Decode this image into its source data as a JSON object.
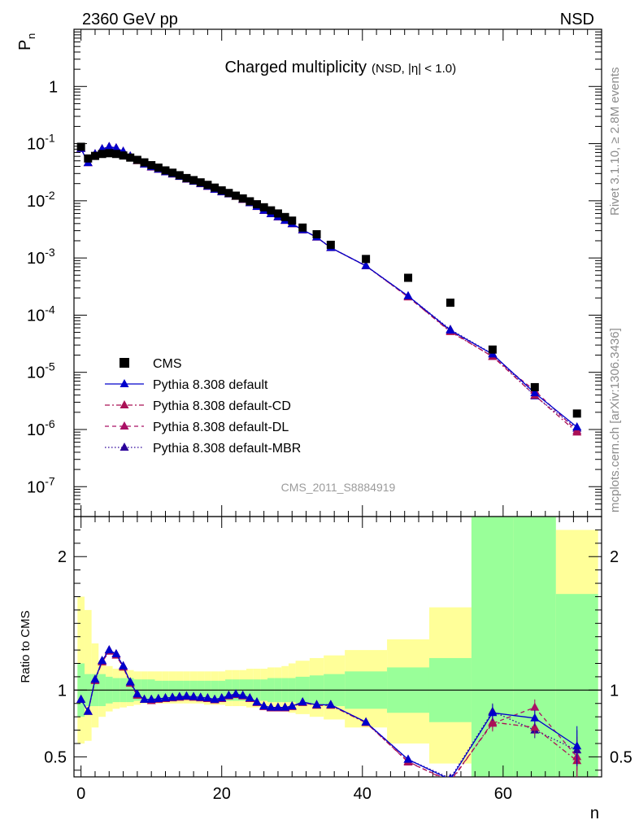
{
  "header": {
    "left": "2360 GeV pp",
    "right": "NSD"
  },
  "chart_data": {
    "type": "scatter",
    "title": "Charged multiplicity",
    "title_sub": "(NSD, |η| < 1.0)",
    "analysis_id": "CMS_2011_S8884919",
    "side_top": "Rivet 3.1.10, ≥ 2.8M events",
    "side_bottom": "mcplots.cern.ch [arXiv:1306.3436]",
    "xlabel": "n",
    "ylabel": "P",
    "ylabel_sub": "n",
    "ratio_ylabel": "Ratio to CMS",
    "xlim": [
      -1,
      74
    ],
    "ylim_log": [
      3e-08,
      10
    ],
    "ratio_ylim": [
      0.35,
      2.3
    ],
    "x_ticks": [
      0,
      20,
      40,
      60
    ],
    "y_ticks_main": [
      "10^{-7}",
      "10^{-6}",
      "10^{-5}",
      "10^{-4}",
      "10^{-3}",
      "10^{-2}",
      "10^{-1}",
      "1"
    ],
    "ratio_ticks": [
      0.5,
      1,
      2
    ],
    "legend_position": "lower-left",
    "colors": {
      "cms": "#000000",
      "default": "#0000cc",
      "cd": "#aa1155",
      "dl": "#aa1166",
      "mbr": "#2a0099",
      "band_inner": "#99ff99",
      "band_outer": "#ffff99"
    },
    "legend": [
      "CMS",
      "Pythia 8.308 default",
      "Pythia 8.308 default-CD",
      "Pythia 8.308 default-DL",
      "Pythia 8.308 default-MBR"
    ],
    "cms": {
      "n": [
        0,
        1,
        2,
        3,
        4,
        5,
        6,
        7,
        8,
        9,
        10,
        11,
        12,
        13,
        14,
        15,
        16,
        17,
        18,
        19,
        20,
        21,
        22,
        23,
        24,
        25,
        26,
        27,
        28,
        29,
        30,
        31.5,
        33.5,
        35.5,
        40.5,
        46.5,
        52.5,
        58.5,
        64.5,
        70.5
      ],
      "p": [
        0.088,
        0.055,
        0.061,
        0.066,
        0.068,
        0.066,
        0.062,
        0.057,
        0.052,
        0.047,
        0.042,
        0.038,
        0.034,
        0.031,
        0.028,
        0.025,
        0.023,
        0.021,
        0.019,
        0.017,
        0.0152,
        0.0137,
        0.0123,
        0.011,
        0.0098,
        0.0087,
        0.0077,
        0.0068,
        0.006,
        0.0052,
        0.0045,
        0.0034,
        0.0026,
        0.0017,
        0.00096,
        0.00045,
        0.000165,
        2.5e-05,
        5.5e-06,
        1.9e-06
      ]
    },
    "series": [
      {
        "name": "Pythia 8.308 default",
        "line": "solid",
        "n": [
          0,
          1,
          2,
          3,
          4,
          5,
          6,
          7,
          8,
          9,
          10,
          11,
          12,
          13,
          14,
          15,
          16,
          17,
          18,
          19,
          20,
          21,
          22,
          23,
          24,
          25,
          26,
          27,
          28,
          29,
          30,
          31.5,
          33.5,
          35.5,
          40.5,
          46.5,
          52.5,
          58.5,
          64.5,
          70.5
        ],
        "ratio": [
          0.93,
          0.84,
          1.08,
          1.22,
          1.3,
          1.27,
          1.18,
          1.06,
          0.97,
          0.93,
          0.93,
          0.935,
          0.94,
          0.945,
          0.95,
          0.955,
          0.95,
          0.945,
          0.94,
          0.93,
          0.94,
          0.96,
          0.97,
          0.96,
          0.94,
          0.91,
          0.88,
          0.87,
          0.87,
          0.87,
          0.88,
          0.91,
          0.89,
          0.89,
          0.76,
          0.48,
          0.33,
          0.83,
          0.79,
          0.58
        ]
      },
      {
        "name": "Pythia 8.308 default-CD",
        "line": "dashdot",
        "n": [
          0,
          1,
          2,
          3,
          4,
          5,
          6,
          7,
          8,
          9,
          10,
          11,
          12,
          13,
          14,
          15,
          16,
          17,
          18,
          19,
          20,
          21,
          22,
          23,
          24,
          25,
          26,
          27,
          28,
          29,
          30,
          31.5,
          33.5,
          35.5,
          40.5,
          46.5,
          52.5,
          58.5,
          64.5,
          70.5
        ],
        "ratio": [
          0.93,
          0.84,
          1.07,
          1.21,
          1.29,
          1.26,
          1.17,
          1.05,
          0.96,
          0.93,
          0.92,
          0.93,
          0.935,
          0.94,
          0.945,
          0.95,
          0.945,
          0.94,
          0.935,
          0.925,
          0.935,
          0.955,
          0.965,
          0.955,
          0.935,
          0.905,
          0.875,
          0.865,
          0.865,
          0.865,
          0.875,
          0.905,
          0.885,
          0.885,
          0.755,
          0.465,
          0.31,
          0.76,
          0.72,
          0.47
        ]
      },
      {
        "name": "Pythia 8.308 default-DL",
        "line": "dashed",
        "n": [
          0,
          1,
          2,
          3,
          4,
          5,
          6,
          7,
          8,
          9,
          10,
          11,
          12,
          13,
          14,
          15,
          16,
          17,
          18,
          19,
          20,
          21,
          22,
          23,
          24,
          25,
          26,
          27,
          28,
          29,
          30,
          31.5,
          33.5,
          35.5,
          40.5,
          46.5,
          52.5,
          58.5,
          64.5,
          70.5
        ],
        "ratio": [
          0.93,
          0.84,
          1.08,
          1.22,
          1.3,
          1.27,
          1.18,
          1.06,
          0.97,
          0.93,
          0.93,
          0.935,
          0.94,
          0.945,
          0.95,
          0.955,
          0.95,
          0.945,
          0.94,
          0.93,
          0.94,
          0.96,
          0.97,
          0.96,
          0.94,
          0.91,
          0.88,
          0.87,
          0.87,
          0.87,
          0.88,
          0.91,
          0.89,
          0.89,
          0.76,
          0.46,
          0.32,
          0.75,
          0.87,
          0.5
        ]
      },
      {
        "name": "Pythia 8.308 default-MBR",
        "line": "dotted",
        "n": [
          0,
          1,
          2,
          3,
          4,
          5,
          6,
          7,
          8,
          9,
          10,
          11,
          12,
          13,
          14,
          15,
          16,
          17,
          18,
          19,
          20,
          21,
          22,
          23,
          24,
          25,
          26,
          27,
          28,
          29,
          30,
          31.5,
          33.5,
          35.5,
          40.5,
          46.5,
          52.5,
          58.5,
          64.5,
          70.5
        ],
        "ratio": [
          0.93,
          0.84,
          1.08,
          1.22,
          1.3,
          1.27,
          1.18,
          1.06,
          0.97,
          0.93,
          0.93,
          0.935,
          0.94,
          0.945,
          0.95,
          0.955,
          0.95,
          0.945,
          0.94,
          0.93,
          0.94,
          0.96,
          0.97,
          0.96,
          0.94,
          0.91,
          0.88,
          0.87,
          0.87,
          0.87,
          0.88,
          0.91,
          0.89,
          0.89,
          0.76,
          0.48,
          0.34,
          0.84,
          0.7,
          0.55
        ]
      }
    ],
    "band": {
      "edges": [
        -0.5,
        0.5,
        1.5,
        2.5,
        3.5,
        4.5,
        5.5,
        6.5,
        7.5,
        8.5,
        9.5,
        10.5,
        11.5,
        12.5,
        13.5,
        14.5,
        15.5,
        16.5,
        17.5,
        18.5,
        19.5,
        20.5,
        21.5,
        22.5,
        23.5,
        24.5,
        25.5,
        26.5,
        27.5,
        28.5,
        29.5,
        30.5,
        32.5,
        34.5,
        37.5,
        43.5,
        49.5,
        55.5,
        61.5,
        67.5,
        73.5
      ],
      "inner_lo": [
        0.8,
        0.88,
        0.88,
        0.88,
        0.9,
        0.91,
        0.91,
        0.91,
        0.92,
        0.92,
        0.92,
        0.93,
        0.93,
        0.93,
        0.93,
        0.93,
        0.93,
        0.93,
        0.93,
        0.93,
        0.93,
        0.92,
        0.92,
        0.92,
        0.92,
        0.92,
        0.92,
        0.91,
        0.91,
        0.91,
        0.91,
        0.9,
        0.89,
        0.88,
        0.86,
        0.83,
        0.76,
        0.3,
        0.3,
        0.3
      ],
      "inner_hi": [
        1.2,
        1.12,
        1.12,
        1.12,
        1.1,
        1.09,
        1.09,
        1.09,
        1.08,
        1.08,
        1.08,
        1.07,
        1.07,
        1.07,
        1.07,
        1.07,
        1.07,
        1.07,
        1.07,
        1.07,
        1.07,
        1.08,
        1.08,
        1.08,
        1.08,
        1.08,
        1.08,
        1.09,
        1.09,
        1.09,
        1.09,
        1.1,
        1.11,
        1.12,
        1.14,
        1.17,
        1.24,
        2.4,
        2.4,
        1.72
      ],
      "outer_lo": [
        0.6,
        0.62,
        0.72,
        0.8,
        0.84,
        0.86,
        0.87,
        0.88,
        0.89,
        0.9,
        0.9,
        0.9,
        0.9,
        0.9,
        0.9,
        0.9,
        0.9,
        0.9,
        0.89,
        0.89,
        0.89,
        0.88,
        0.88,
        0.88,
        0.87,
        0.87,
        0.86,
        0.86,
        0.85,
        0.84,
        0.83,
        0.82,
        0.8,
        0.78,
        0.72,
        0.6,
        0.45,
        0.3,
        0.3,
        0.3
      ],
      "outer_hi": [
        1.7,
        1.6,
        1.35,
        1.22,
        1.18,
        1.16,
        1.15,
        1.15,
        1.14,
        1.14,
        1.14,
        1.14,
        1.14,
        1.14,
        1.14,
        1.14,
        1.14,
        1.14,
        1.14,
        1.14,
        1.14,
        1.15,
        1.15,
        1.15,
        1.16,
        1.16,
        1.16,
        1.17,
        1.17,
        1.18,
        1.2,
        1.22,
        1.24,
        1.26,
        1.3,
        1.38,
        1.62,
        2.4,
        2.4,
        2.2
      ]
    }
  }
}
